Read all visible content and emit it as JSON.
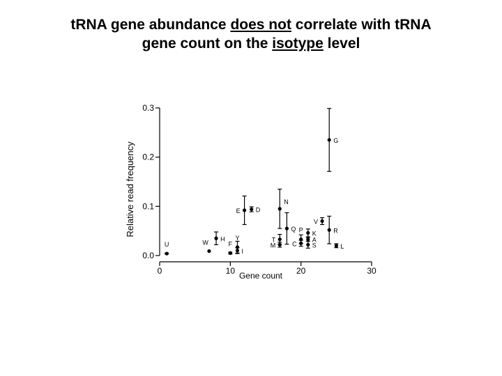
{
  "slide": {
    "title_line1_a": "tRNA gene abundance ",
    "title_line1_u": "does not",
    "title_line1_b": " correlate with tRNA",
    "title_line2_a": "gene count on the ",
    "title_line2_u": "isotype",
    "title_line2_b": " level"
  },
  "chart_data": {
    "type": "scatter",
    "xlabel": "Gene count",
    "ylabel": "Relative read frequency",
    "xlim": [
      0,
      30
    ],
    "ylim": [
      0,
      0.3
    ],
    "xticks": [
      0,
      10,
      20,
      30
    ],
    "xtick_labels": [
      "0",
      "10",
      "20",
      "30"
    ],
    "yticks": [
      0,
      0.1,
      0.2,
      0.3
    ],
    "ytick_labels": [
      "0.0",
      "0.1",
      "0.2",
      "0.3"
    ],
    "grid": false,
    "error_bars": true,
    "points": [
      {
        "label": "U",
        "x": 1,
        "y": 0.004,
        "err": 0.001,
        "label_pos": "above"
      },
      {
        "label": "W",
        "x": 7,
        "y": 0.009,
        "err": 0.0,
        "label_pos": "above-left"
      },
      {
        "label": "H",
        "x": 8,
        "y": 0.035,
        "err": 0.013,
        "label_pos": "right"
      },
      {
        "label": "F",
        "x": 10,
        "y": 0.005,
        "err": 0.002,
        "label_pos": "above"
      },
      {
        "label": "Y",
        "x": 11,
        "y": 0.017,
        "err": 0.012,
        "label_pos": "above"
      },
      {
        "label": "I",
        "x": 11,
        "y": 0.01,
        "err": 0.006,
        "label_pos": "right"
      },
      {
        "label": "E",
        "x": 12,
        "y": 0.092,
        "err": 0.029,
        "label_pos": "left"
      },
      {
        "label": "D",
        "x": 13,
        "y": 0.094,
        "err": 0.005,
        "label_pos": "right"
      },
      {
        "label": "N",
        "x": 17,
        "y": 0.095,
        "err": 0.04,
        "label_pos": "above-right"
      },
      {
        "label": "T",
        "x": 17,
        "y": 0.033,
        "err": 0.01,
        "label_pos": "left"
      },
      {
        "label": "M",
        "x": 17,
        "y": 0.022,
        "err": 0.005,
        "label_pos": "left"
      },
      {
        "label": "Q",
        "x": 18,
        "y": 0.055,
        "err": 0.032,
        "label_pos": "right"
      },
      {
        "label": "P",
        "x": 20,
        "y": 0.033,
        "err": 0.009,
        "label_pos": "above"
      },
      {
        "label": "C",
        "x": 20,
        "y": 0.025,
        "err": 0.006,
        "label_pos": "left"
      },
      {
        "label": "K",
        "x": 21,
        "y": 0.046,
        "err": 0.008,
        "label_pos": "right"
      },
      {
        "label": "A",
        "x": 21,
        "y": 0.033,
        "err": 0.004,
        "label_pos": "right"
      },
      {
        "label": "S",
        "x": 21,
        "y": 0.022,
        "err": 0.007,
        "label_pos": "right"
      },
      {
        "label": "V",
        "x": 23,
        "y": 0.07,
        "err": 0.007,
        "label_pos": "left"
      },
      {
        "label": "G",
        "x": 24,
        "y": 0.235,
        "err": 0.064,
        "label_pos": "right"
      },
      {
        "label": "R",
        "x": 24,
        "y": 0.052,
        "err": 0.028,
        "label_pos": "right"
      },
      {
        "label": "L",
        "x": 25,
        "y": 0.02,
        "err": 0.004,
        "label_pos": "right"
      }
    ]
  }
}
